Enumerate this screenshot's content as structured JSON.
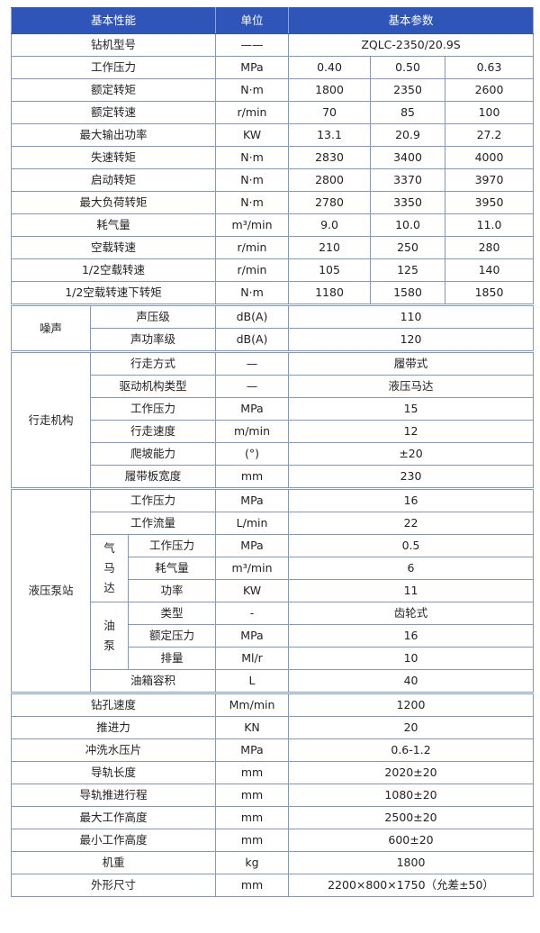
{
  "header": {
    "col1": "基本性能",
    "col2": "单位",
    "col3": "基本参数"
  },
  "model": {
    "label": "钻机型号",
    "unit": "——",
    "value": "ZQLC-2350/20.9S"
  },
  "simple_rows": [
    {
      "label": "工作压力",
      "unit": "MPa",
      "values": [
        "0.40",
        "0.50",
        "0.63"
      ]
    },
    {
      "label": "额定转矩",
      "unit": "N·m",
      "values": [
        "1800",
        "2350",
        "2600"
      ]
    },
    {
      "label": "额定转速",
      "unit": "r/min",
      "values": [
        "70",
        "85",
        "100"
      ]
    },
    {
      "label": "最大输出功率",
      "unit": "KW",
      "values": [
        "13.1",
        "20.9",
        "27.2"
      ]
    },
    {
      "label": "失速转矩",
      "unit": "N·m",
      "values": [
        "2830",
        "3400",
        "4000"
      ]
    },
    {
      "label": "启动转矩",
      "unit": "N·m",
      "values": [
        "2800",
        "3370",
        "3970"
      ]
    },
    {
      "label": "最大负荷转矩",
      "unit": "N·m",
      "values": [
        "2780",
        "3350",
        "3950"
      ]
    },
    {
      "label": "耗气量",
      "unit": "m³/min",
      "values": [
        "9.0",
        "10.0",
        "11.0"
      ]
    },
    {
      "label": "空载转速",
      "unit": "r/min",
      "values": [
        "210",
        "250",
        "280"
      ]
    },
    {
      "label": "1/2空载转速",
      "unit": "r/min",
      "values": [
        "105",
        "125",
        "140"
      ]
    },
    {
      "label": "1/2空载转速下转矩",
      "unit": "N·m",
      "values": [
        "1180",
        "1580",
        "1850"
      ]
    }
  ],
  "noise": {
    "label": "噪声",
    "rows": [
      {
        "label": "声压级",
        "unit": "dB(A)",
        "value": "110"
      },
      {
        "label": "声功率级",
        "unit": "dB(A)",
        "value": "120"
      }
    ]
  },
  "travel": {
    "label": "行走机构",
    "rows": [
      {
        "label": "行走方式",
        "unit": "—",
        "value": "履带式"
      },
      {
        "label": "驱动机构类型",
        "unit": "—",
        "value": "液压马达"
      },
      {
        "label": "工作压力",
        "unit": "MPa",
        "value": "15"
      },
      {
        "label": "行走速度",
        "unit": "m/min",
        "value": "12"
      },
      {
        "label": "爬坡能力",
        "unit": "(°)",
        "value": "±20"
      },
      {
        "label": "履带板宽度",
        "unit": "mm",
        "value": "230"
      }
    ]
  },
  "pump": {
    "label": "液压泵站",
    "top_rows": [
      {
        "label": "工作压力",
        "unit": "MPa",
        "value": "16"
      },
      {
        "label": "工作流量",
        "unit": "L/min",
        "value": "22"
      }
    ],
    "groups": [
      {
        "label": [
          "气",
          "马",
          "达"
        ],
        "rows": [
          {
            "label": "工作压力",
            "unit": "MPa",
            "value": "0.5"
          },
          {
            "label": "耗气量",
            "unit": "m³/min",
            "value": "6"
          },
          {
            "label": "功率",
            "unit": "KW",
            "value": "11"
          }
        ]
      },
      {
        "label": [
          "油",
          "泵"
        ],
        "rows": [
          {
            "label": "类型",
            "unit": "-",
            "value": "齿轮式"
          },
          {
            "label": "额定压力",
            "unit": "MPa",
            "value": "16"
          },
          {
            "label": "排量",
            "unit": "Ml/r",
            "value": "10"
          }
        ]
      }
    ],
    "bottom_rows": [
      {
        "label": "油箱容积",
        "unit": "L",
        "value": "40"
      }
    ]
  },
  "tail_rows": [
    {
      "label": "钻孔速度",
      "unit": "Mm/min",
      "value": "1200"
    },
    {
      "label": "推进力",
      "unit": "KN",
      "value": "20"
    },
    {
      "label": "冲洗水压片",
      "unit": "MPa",
      "value": "0.6-1.2"
    },
    {
      "label": "导轨长度",
      "unit": "mm",
      "value": "2020±20"
    },
    {
      "label": "导轨推进行程",
      "unit": "mm",
      "value": "1080±20"
    },
    {
      "label": "最大工作高度",
      "unit": "mm",
      "value": "2500±20"
    },
    {
      "label": "最小工作高度",
      "unit": "mm",
      "value": "600±20"
    },
    {
      "label": "机重",
      "unit": "kg",
      "value": "1800"
    },
    {
      "label": "外形尺寸",
      "unit": "mm",
      "value": "2200×800×1750（允差±50）"
    }
  ],
  "colors": {
    "header_bg": "#2f55b8",
    "border": "#7c98cf"
  }
}
